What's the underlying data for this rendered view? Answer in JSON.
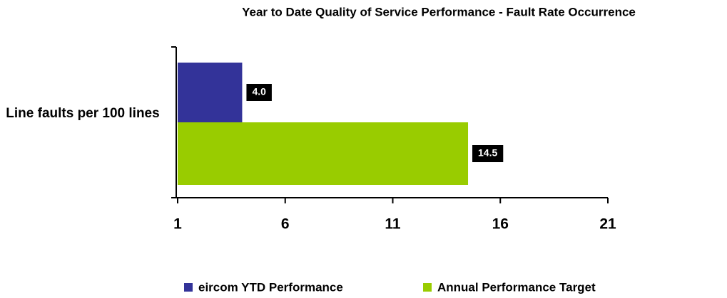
{
  "chart_data": {
    "type": "hbar",
    "title": "Year to Date Quality of Service Performance - Fault Rate Occurrence",
    "categories": [
      "Line faults per 100 lines"
    ],
    "series": [
      {
        "name": "eircom YTD Performance",
        "color": "#333399",
        "values": [
          4.0
        ],
        "value_labels": [
          "4.0"
        ]
      },
      {
        "name": "Annual Performance Target",
        "color": "#99cc00",
        "values": [
          14.5
        ],
        "value_labels": [
          "14.5"
        ]
      }
    ],
    "xlim": [
      1,
      21
    ],
    "xticks": [
      1,
      6,
      11,
      16,
      21
    ],
    "legend": "bottom"
  }
}
